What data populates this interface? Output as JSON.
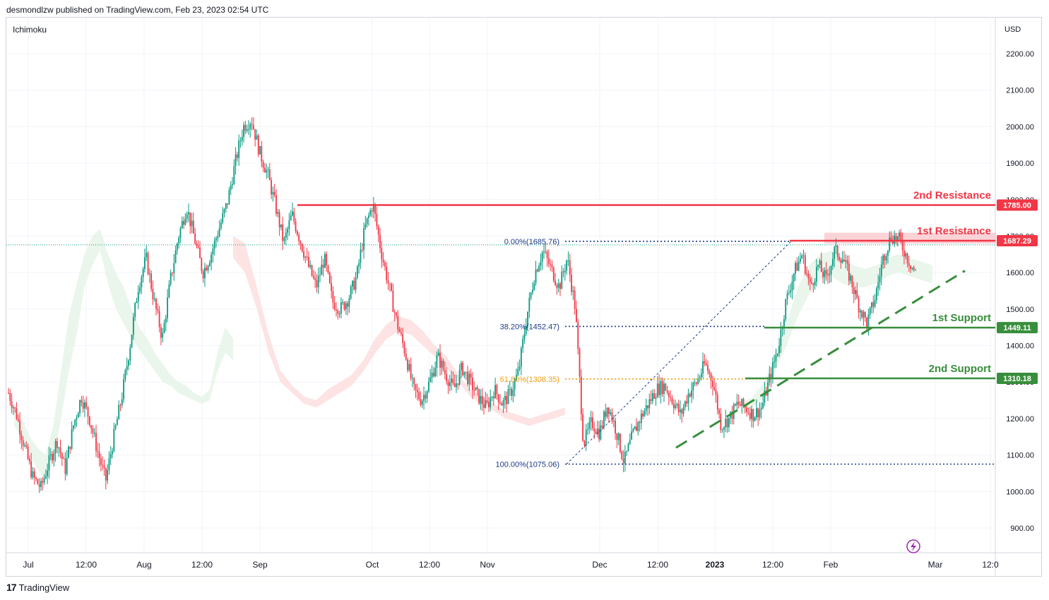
{
  "header": {
    "text": "desmondlzw published on TradingView.com, Feb 23, 2023 02:54 UTC"
  },
  "indicator": {
    "label": "Ichimoku"
  },
  "footer": {
    "brand": "TradingView",
    "logo_icon": "tradingview-logo-icon"
  },
  "chart_data": {
    "type": "candlestick",
    "currency_label": "USD",
    "ylim": [
      850,
      2250
    ],
    "y_ticks": [
      {
        "value": 900,
        "label": "900.00"
      },
      {
        "value": 1000,
        "label": "1000.00"
      },
      {
        "value": 1100,
        "label": "1100.00"
      },
      {
        "value": 1200,
        "label": "1200.00"
      },
      {
        "value": 1300,
        "label": "1300.00"
      },
      {
        "value": 1400,
        "label": "1400.00"
      },
      {
        "value": 1500,
        "label": "1500.00"
      },
      {
        "value": 1600,
        "label": "1600.00"
      },
      {
        "value": 1700,
        "label": "1700.00"
      },
      {
        "value": 1800,
        "label": "1800.00"
      },
      {
        "value": 1900,
        "label": "1900.00"
      },
      {
        "value": 2000,
        "label": "2000.00"
      },
      {
        "value": 2100,
        "label": "2100.00"
      },
      {
        "value": 2200,
        "label": "2200.00"
      }
    ],
    "x_ticks": [
      {
        "label": "Jul",
        "bold": false
      },
      {
        "label": "12:00",
        "bold": false
      },
      {
        "label": "Aug",
        "bold": false
      },
      {
        "label": "12:00",
        "bold": false
      },
      {
        "label": "Sep",
        "bold": false
      },
      {
        "label": "Oct",
        "bold": false
      },
      {
        "label": "12:00",
        "bold": false
      },
      {
        "label": "Nov",
        "bold": false
      },
      {
        "label": "Dec",
        "bold": false
      },
      {
        "label": "12:00",
        "bold": false
      },
      {
        "label": "2023",
        "bold": true
      },
      {
        "label": "12:00",
        "bold": false
      },
      {
        "label": "Feb",
        "bold": false
      },
      {
        "label": "Mar",
        "bold": false
      },
      {
        "label": "12:0",
        "bold": false
      }
    ],
    "price_path": [
      1270,
      1210,
      1120,
      1040,
      1010,
      1080,
      1140,
      1060,
      1180,
      1260,
      1200,
      1110,
      1030,
      1150,
      1260,
      1400,
      1560,
      1640,
      1520,
      1420,
      1580,
      1700,
      1780,
      1690,
      1600,
      1650,
      1720,
      1790,
      1900,
      2000,
      2020,
      1930,
      1870,
      1780,
      1680,
      1760,
      1690,
      1620,
      1560,
      1640,
      1520,
      1500,
      1530,
      1590,
      1720,
      1790,
      1660,
      1560,
      1460,
      1380,
      1280,
      1250,
      1300,
      1370,
      1320,
      1280,
      1340,
      1300,
      1260,
      1230,
      1280,
      1240,
      1270,
      1330,
      1480,
      1600,
      1660,
      1610,
      1560,
      1640,
      1500,
      1130,
      1190,
      1160,
      1240,
      1170,
      1080,
      1150,
      1200,
      1240,
      1280,
      1290,
      1250,
      1210,
      1270,
      1300,
      1350,
      1300,
      1180,
      1200,
      1240,
      1230,
      1210,
      1230,
      1310,
      1390,
      1520,
      1600,
      1650,
      1560,
      1620,
      1580,
      1660,
      1640,
      1580,
      1510,
      1460,
      1530,
      1640,
      1700,
      1690,
      1640,
      1600
    ],
    "ichimoku_cloud": [
      {
        "bullish": true,
        "top": [
          1230,
          1200,
          1150,
          1120,
          1100,
          1180,
          1330,
          1480,
          1570,
          1650,
          1700,
          1720,
          1650,
          1600,
          1560,
          1500,
          1450,
          1420,
          1380,
          1350,
          1320,
          1300,
          1290,
          1270,
          1260,
          1280,
          1380,
          1450,
          1420
        ],
        "bottom": [
          1180,
          1150,
          1100,
          1060,
          1030,
          1080,
          1200,
          1330,
          1430,
          1560,
          1620,
          1660,
          1570,
          1500,
          1460,
          1420,
          1390,
          1360,
          1330,
          1300,
          1290,
          1270,
          1260,
          1250,
          1240,
          1250,
          1330,
          1380,
          1360
        ]
      },
      {
        "bullish": false,
        "top": [
          1700,
          1680,
          1560,
          1430,
          1330,
          1290,
          1260,
          1250,
          1280,
          1300,
          1320,
          1360,
          1420,
          1460,
          1480,
          1470,
          1440,
          1400,
          1370,
          1320,
          1280,
          1260,
          1240,
          1220,
          1210,
          1200,
          1210,
          1220,
          1230
        ],
        "bottom": [
          1640,
          1600,
          1500,
          1380,
          1300,
          1270,
          1240,
          1230,
          1250,
          1270,
          1290,
          1330,
          1380,
          1420,
          1440,
          1430,
          1400,
          1370,
          1340,
          1300,
          1260,
          1240,
          1220,
          1200,
          1190,
          1180,
          1190,
          1200,
          1210
        ]
      },
      {
        "bullish": true,
        "top": [
          1240,
          1260,
          1300,
          1380,
          1460,
          1560,
          1620,
          1650,
          1660,
          1640,
          1620,
          1610,
          1620,
          1640,
          1650,
          1640,
          1630,
          1620
        ],
        "bottom": [
          1210,
          1230,
          1260,
          1330,
          1400,
          1480,
          1540,
          1580,
          1590,
          1570,
          1560,
          1560,
          1570,
          1590,
          1600,
          1590,
          1580,
          1570
        ]
      }
    ],
    "levels": [
      {
        "name": "2nd Resistance",
        "label": "2nd Resistance",
        "value": 1785.0,
        "value_label": "1785.00",
        "color": "#f23645"
      },
      {
        "name": "1st Resistance",
        "label": "1st Resistance",
        "value": 1687.29,
        "value_label": "1687.29",
        "color": "#f23645"
      },
      {
        "name": "1st Support",
        "label": "1st Support",
        "value": 1449.11,
        "value_label": "1449.11",
        "color": "#388e3c"
      },
      {
        "name": "2nd Support",
        "label": "2nd Support",
        "value": 1310.18,
        "value_label": "1310.18",
        "color": "#388e3c"
      }
    ],
    "fibonacci": [
      {
        "label": "0.00%(1685.76)",
        "value": 1685.76,
        "color": "#1e3a8a"
      },
      {
        "label": "38.20%(1452.47)",
        "value": 1452.47,
        "color": "#1e3a8a"
      },
      {
        "label": "61.80%(1308.35)",
        "value": 1308.35,
        "color": "#f59e0b"
      },
      {
        "label": "100.00%(1075.06)",
        "value": 1075.06,
        "color": "#1e3a8a"
      }
    ],
    "current_price": 1676,
    "trendline": {
      "color": "#388e3c",
      "from_value": 1120,
      "to_value": 1605
    },
    "colors": {
      "up": "#089981",
      "down": "#f23645",
      "cloud_up": "#e8f5e9",
      "cloud_down": "#fde0e0",
      "resistance_zone": "#f9c6cb"
    },
    "tool_icon": "lightning-icon"
  }
}
